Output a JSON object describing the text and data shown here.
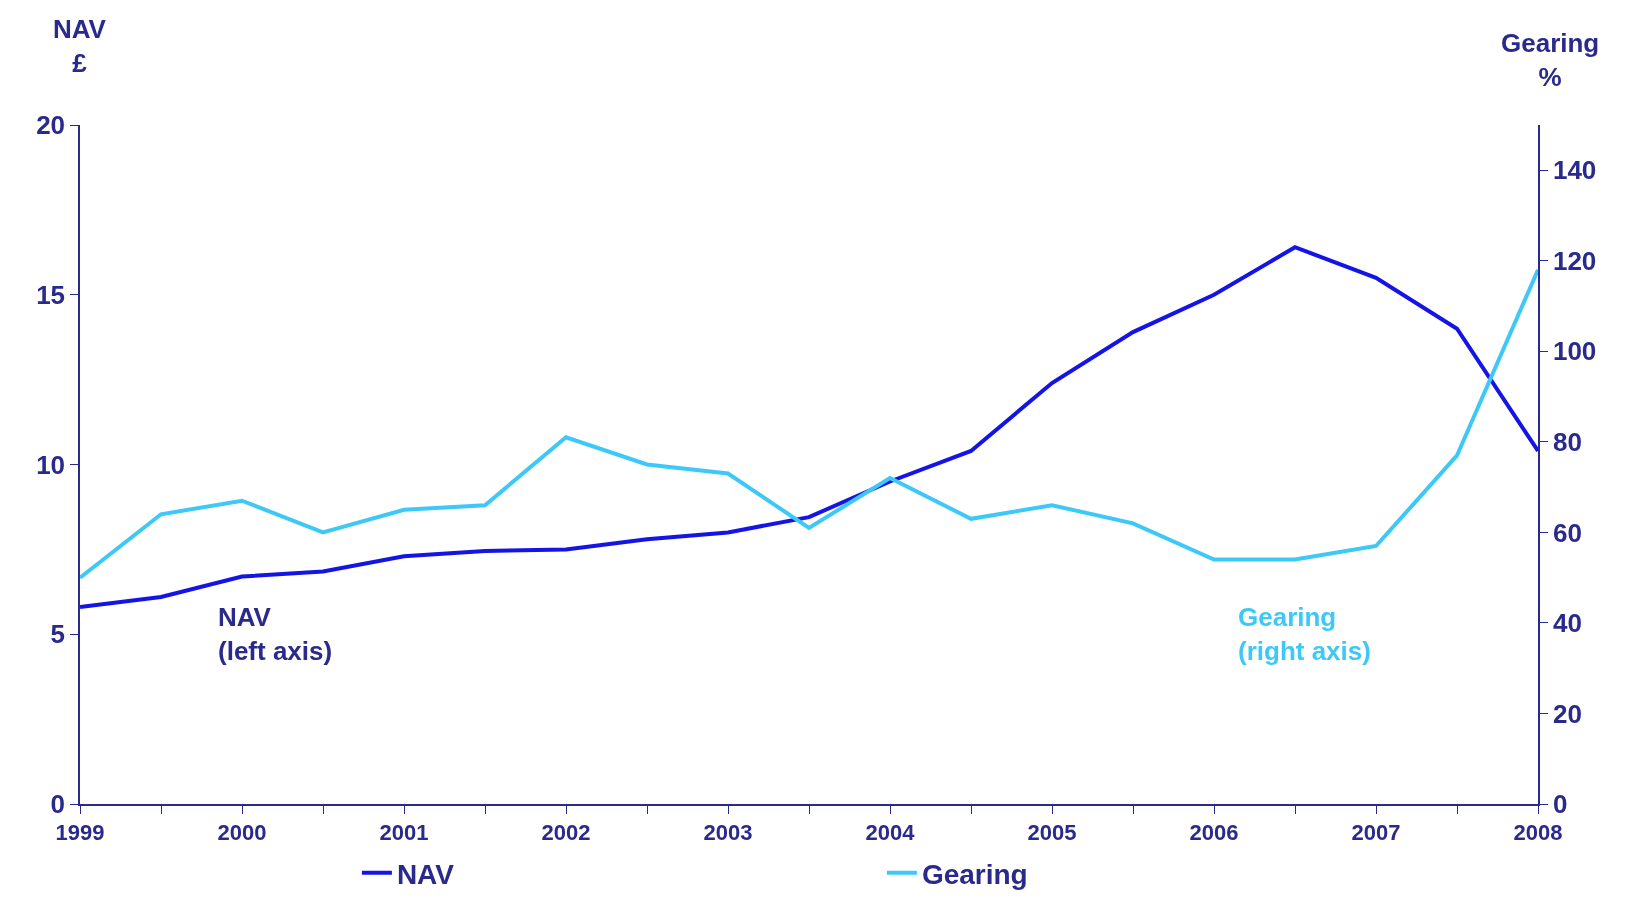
{
  "chart_data": {
    "type": "line",
    "ylabel": "NAV\n£",
    "y2label": "Gearing\n%",
    "x": [
      1999,
      1999.5,
      2000,
      2000.5,
      2001,
      2001.5,
      2002,
      2002.5,
      2003,
      2003.5,
      2004,
      2004.5,
      2005,
      2005.5,
      2006,
      2006.5,
      2007,
      2007.5,
      2008
    ],
    "series": [
      {
        "name": "NAV",
        "color": "#1414e6",
        "values": [
          5.8,
          6.1,
          6.7,
          6.85,
          7.3,
          7.45,
          7.5,
          7.8,
          8.0,
          8.45,
          9.5,
          10.4,
          12.4,
          13.9,
          15.0,
          16.4,
          15.5,
          14.0,
          10.4
        ]
      },
      {
        "name": "Gearing",
        "color": "#3ec8f8",
        "axis": "y2",
        "values": [
          50,
          64,
          67,
          60,
          65,
          66,
          81,
          75,
          73,
          61,
          72,
          63,
          66,
          62,
          54,
          54,
          57,
          77,
          118
        ]
      }
    ],
    "xlim": [
      1999,
      2008
    ],
    "xticks": [
      1999,
      {
        "value": 1999.5,
        "label": null
      },
      2000,
      {
        "value": 2000.5,
        "label": null
      },
      2001,
      {
        "value": 2001.5,
        "label": null
      },
      2002,
      {
        "value": 2002.5,
        "label": null
      },
      2003,
      {
        "value": 2003.5,
        "label": null
      },
      2004,
      {
        "value": 2004.5,
        "label": null
      },
      2005,
      {
        "value": 2005.5,
        "label": null
      },
      2006,
      {
        "value": 2006.5,
        "label": null
      },
      2007,
      {
        "value": 2007.5,
        "label": null
      },
      2008
    ],
    "ylim": [
      0,
      20
    ],
    "yticks": [
      0,
      5,
      10,
      15,
      20
    ],
    "y2lim": [
      0,
      150
    ],
    "y2ticks": [
      0,
      20,
      40,
      60,
      80,
      100,
      120,
      140
    ],
    "annotations": [
      "NAV\n(left axis)",
      "Gearing\n(right axis)"
    ],
    "grid": false,
    "legend": "bottom",
    "marker": "none",
    "line_style": "solid"
  }
}
